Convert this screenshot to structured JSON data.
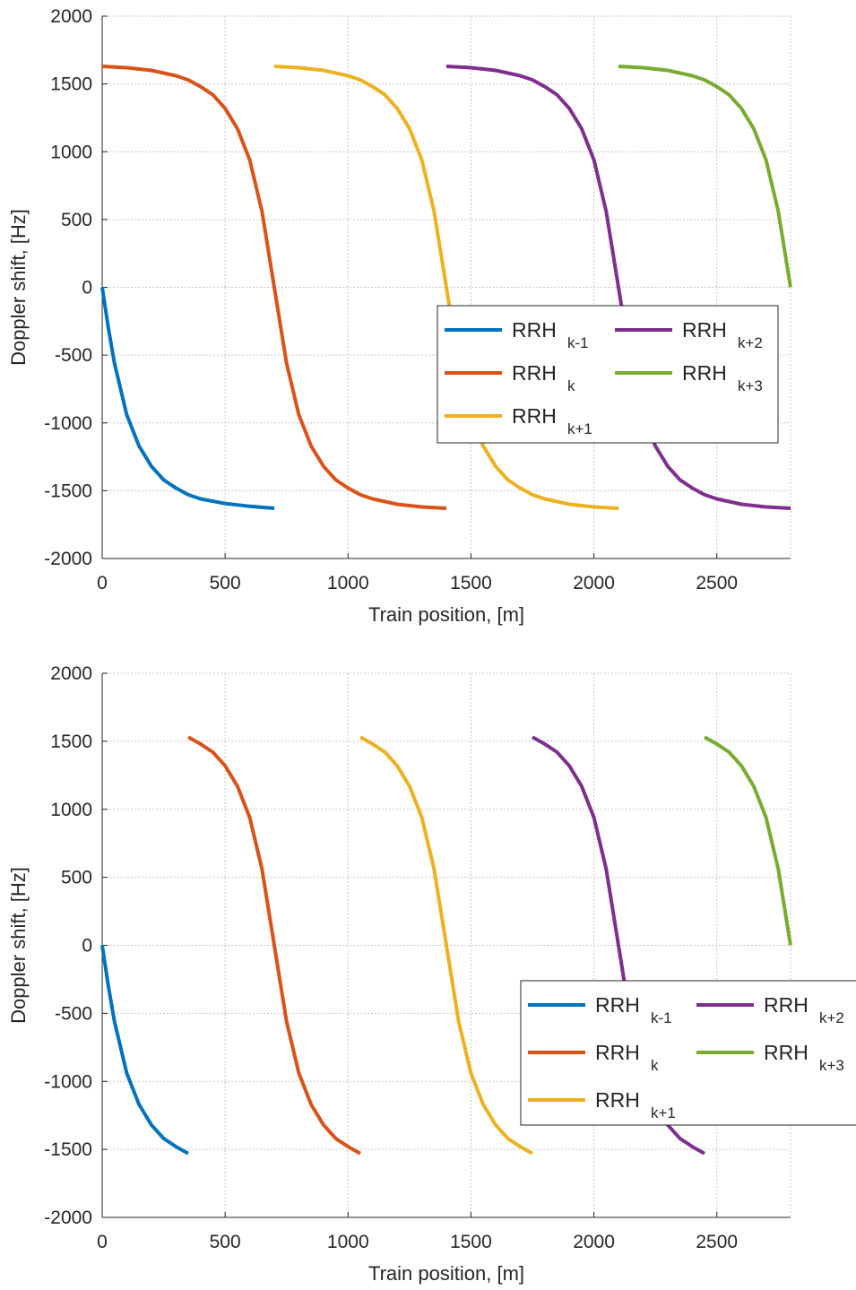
{
  "chart_data": [
    {
      "type": "line",
      "xlabel": "Train position, [m]",
      "ylabel": "Doppler shift, [Hz]",
      "xlim": [
        0,
        2800
      ],
      "ylim": [
        -2000,
        2000
      ],
      "xticks": [
        0,
        500,
        1000,
        1500,
        2000,
        2500
      ],
      "yticks": [
        2000,
        1500,
        1000,
        500,
        0,
        -500,
        -1000,
        -1500,
        -2000
      ],
      "grid": true,
      "legend": {
        "placement": "center-right",
        "columns": 2
      },
      "series": [
        {
          "name": "RRH",
          "sub": "k-1",
          "color": "#0072BD",
          "x": [
            0,
            25,
            50,
            100,
            150,
            200,
            250,
            300,
            350,
            400,
            500,
            600,
            700
          ],
          "y": [
            0,
            -300,
            -560,
            -940,
            -1170,
            -1320,
            -1420,
            -1480,
            -1530,
            -1560,
            -1595,
            -1615,
            -1630
          ]
        },
        {
          "name": "RRH",
          "sub": "k",
          "color": "#D95319",
          "x": [
            0,
            100,
            200,
            300,
            350,
            400,
            450,
            500,
            550,
            600,
            650,
            700,
            750,
            800,
            850,
            900,
            950,
            1000,
            1050,
            1100,
            1200,
            1300,
            1400
          ],
          "y": [
            1630,
            1620,
            1600,
            1560,
            1530,
            1480,
            1420,
            1320,
            1170,
            940,
            560,
            0,
            -560,
            -940,
            -1170,
            -1320,
            -1420,
            -1480,
            -1530,
            -1560,
            -1600,
            -1620,
            -1630
          ]
        },
        {
          "name": "RRH",
          "sub": "k+1",
          "color": "#EDB120",
          "x": [
            700,
            800,
            900,
            1000,
            1050,
            1100,
            1150,
            1200,
            1250,
            1300,
            1350,
            1400,
            1450,
            1500,
            1550,
            1600,
            1650,
            1700,
            1750,
            1800,
            1900,
            2000,
            2100
          ],
          "y": [
            1630,
            1620,
            1600,
            1560,
            1530,
            1480,
            1420,
            1320,
            1170,
            940,
            560,
            0,
            -560,
            -940,
            -1170,
            -1320,
            -1420,
            -1480,
            -1530,
            -1560,
            -1600,
            -1620,
            -1630
          ]
        },
        {
          "name": "RRH",
          "sub": "k+2",
          "color": "#7E2F8E",
          "x": [
            1400,
            1500,
            1600,
            1700,
            1750,
            1800,
            1850,
            1900,
            1950,
            2000,
            2050,
            2100,
            2150,
            2200,
            2250,
            2300,
            2350,
            2400,
            2450,
            2500,
            2600,
            2700,
            2800
          ],
          "y": [
            1630,
            1620,
            1600,
            1560,
            1530,
            1480,
            1420,
            1320,
            1170,
            940,
            560,
            0,
            -560,
            -940,
            -1170,
            -1320,
            -1420,
            -1480,
            -1530,
            -1560,
            -1600,
            -1620,
            -1630
          ]
        },
        {
          "name": "RRH",
          "sub": "k+3",
          "color": "#77AC30",
          "x": [
            2100,
            2200,
            2300,
            2400,
            2450,
            2500,
            2550,
            2600,
            2650,
            2700,
            2750,
            2800
          ],
          "y": [
            1630,
            1620,
            1600,
            1560,
            1530,
            1480,
            1420,
            1320,
            1170,
            940,
            560,
            0
          ]
        }
      ]
    },
    {
      "type": "line",
      "xlabel": "Train position, [m]",
      "ylabel": "Doppler shift, [Hz]",
      "xlim": [
        0,
        2800
      ],
      "ylim": [
        -2000,
        2000
      ],
      "xticks": [
        0,
        500,
        1000,
        1500,
        2000,
        2500
      ],
      "yticks": [
        2000,
        1500,
        1000,
        500,
        0,
        -500,
        -1000,
        -1500,
        -2000
      ],
      "grid": true,
      "legend": {
        "placement": "bottom-right",
        "columns": 2
      },
      "series": [
        {
          "name": "RRH",
          "sub": "k-1",
          "color": "#0072BD",
          "x": [
            0,
            25,
            50,
            100,
            150,
            200,
            250,
            300,
            350
          ],
          "y": [
            0,
            -300,
            -560,
            -940,
            -1170,
            -1320,
            -1420,
            -1480,
            -1530
          ]
        },
        {
          "name": "RRH",
          "sub": "k",
          "color": "#D95319",
          "x": [
            350,
            400,
            450,
            500,
            550,
            600,
            650,
            700,
            750,
            800,
            850,
            900,
            950,
            1000,
            1050
          ],
          "y": [
            1530,
            1480,
            1420,
            1320,
            1170,
            940,
            560,
            0,
            -560,
            -940,
            -1170,
            -1320,
            -1420,
            -1480,
            -1530
          ]
        },
        {
          "name": "RRH",
          "sub": "k+1",
          "color": "#EDB120",
          "x": [
            1050,
            1100,
            1150,
            1200,
            1250,
            1300,
            1350,
            1400,
            1450,
            1500,
            1550,
            1600,
            1650,
            1700,
            1750
          ],
          "y": [
            1530,
            1480,
            1420,
            1320,
            1170,
            940,
            560,
            0,
            -560,
            -940,
            -1170,
            -1320,
            -1420,
            -1480,
            -1530
          ]
        },
        {
          "name": "RRH",
          "sub": "k+2",
          "color": "#7E2F8E",
          "x": [
            1750,
            1800,
            1850,
            1900,
            1950,
            2000,
            2050,
            2100,
            2150,
            2200,
            2250,
            2300,
            2350,
            2400,
            2450
          ],
          "y": [
            1530,
            1480,
            1420,
            1320,
            1170,
            940,
            560,
            0,
            -560,
            -940,
            -1170,
            -1320,
            -1420,
            -1480,
            -1530
          ]
        },
        {
          "name": "RRH",
          "sub": "k+3",
          "color": "#77AC30",
          "x": [
            2450,
            2500,
            2550,
            2600,
            2650,
            2700,
            2750,
            2800
          ],
          "y": [
            1530,
            1480,
            1420,
            1320,
            1170,
            940,
            560,
            0
          ]
        }
      ]
    }
  ]
}
